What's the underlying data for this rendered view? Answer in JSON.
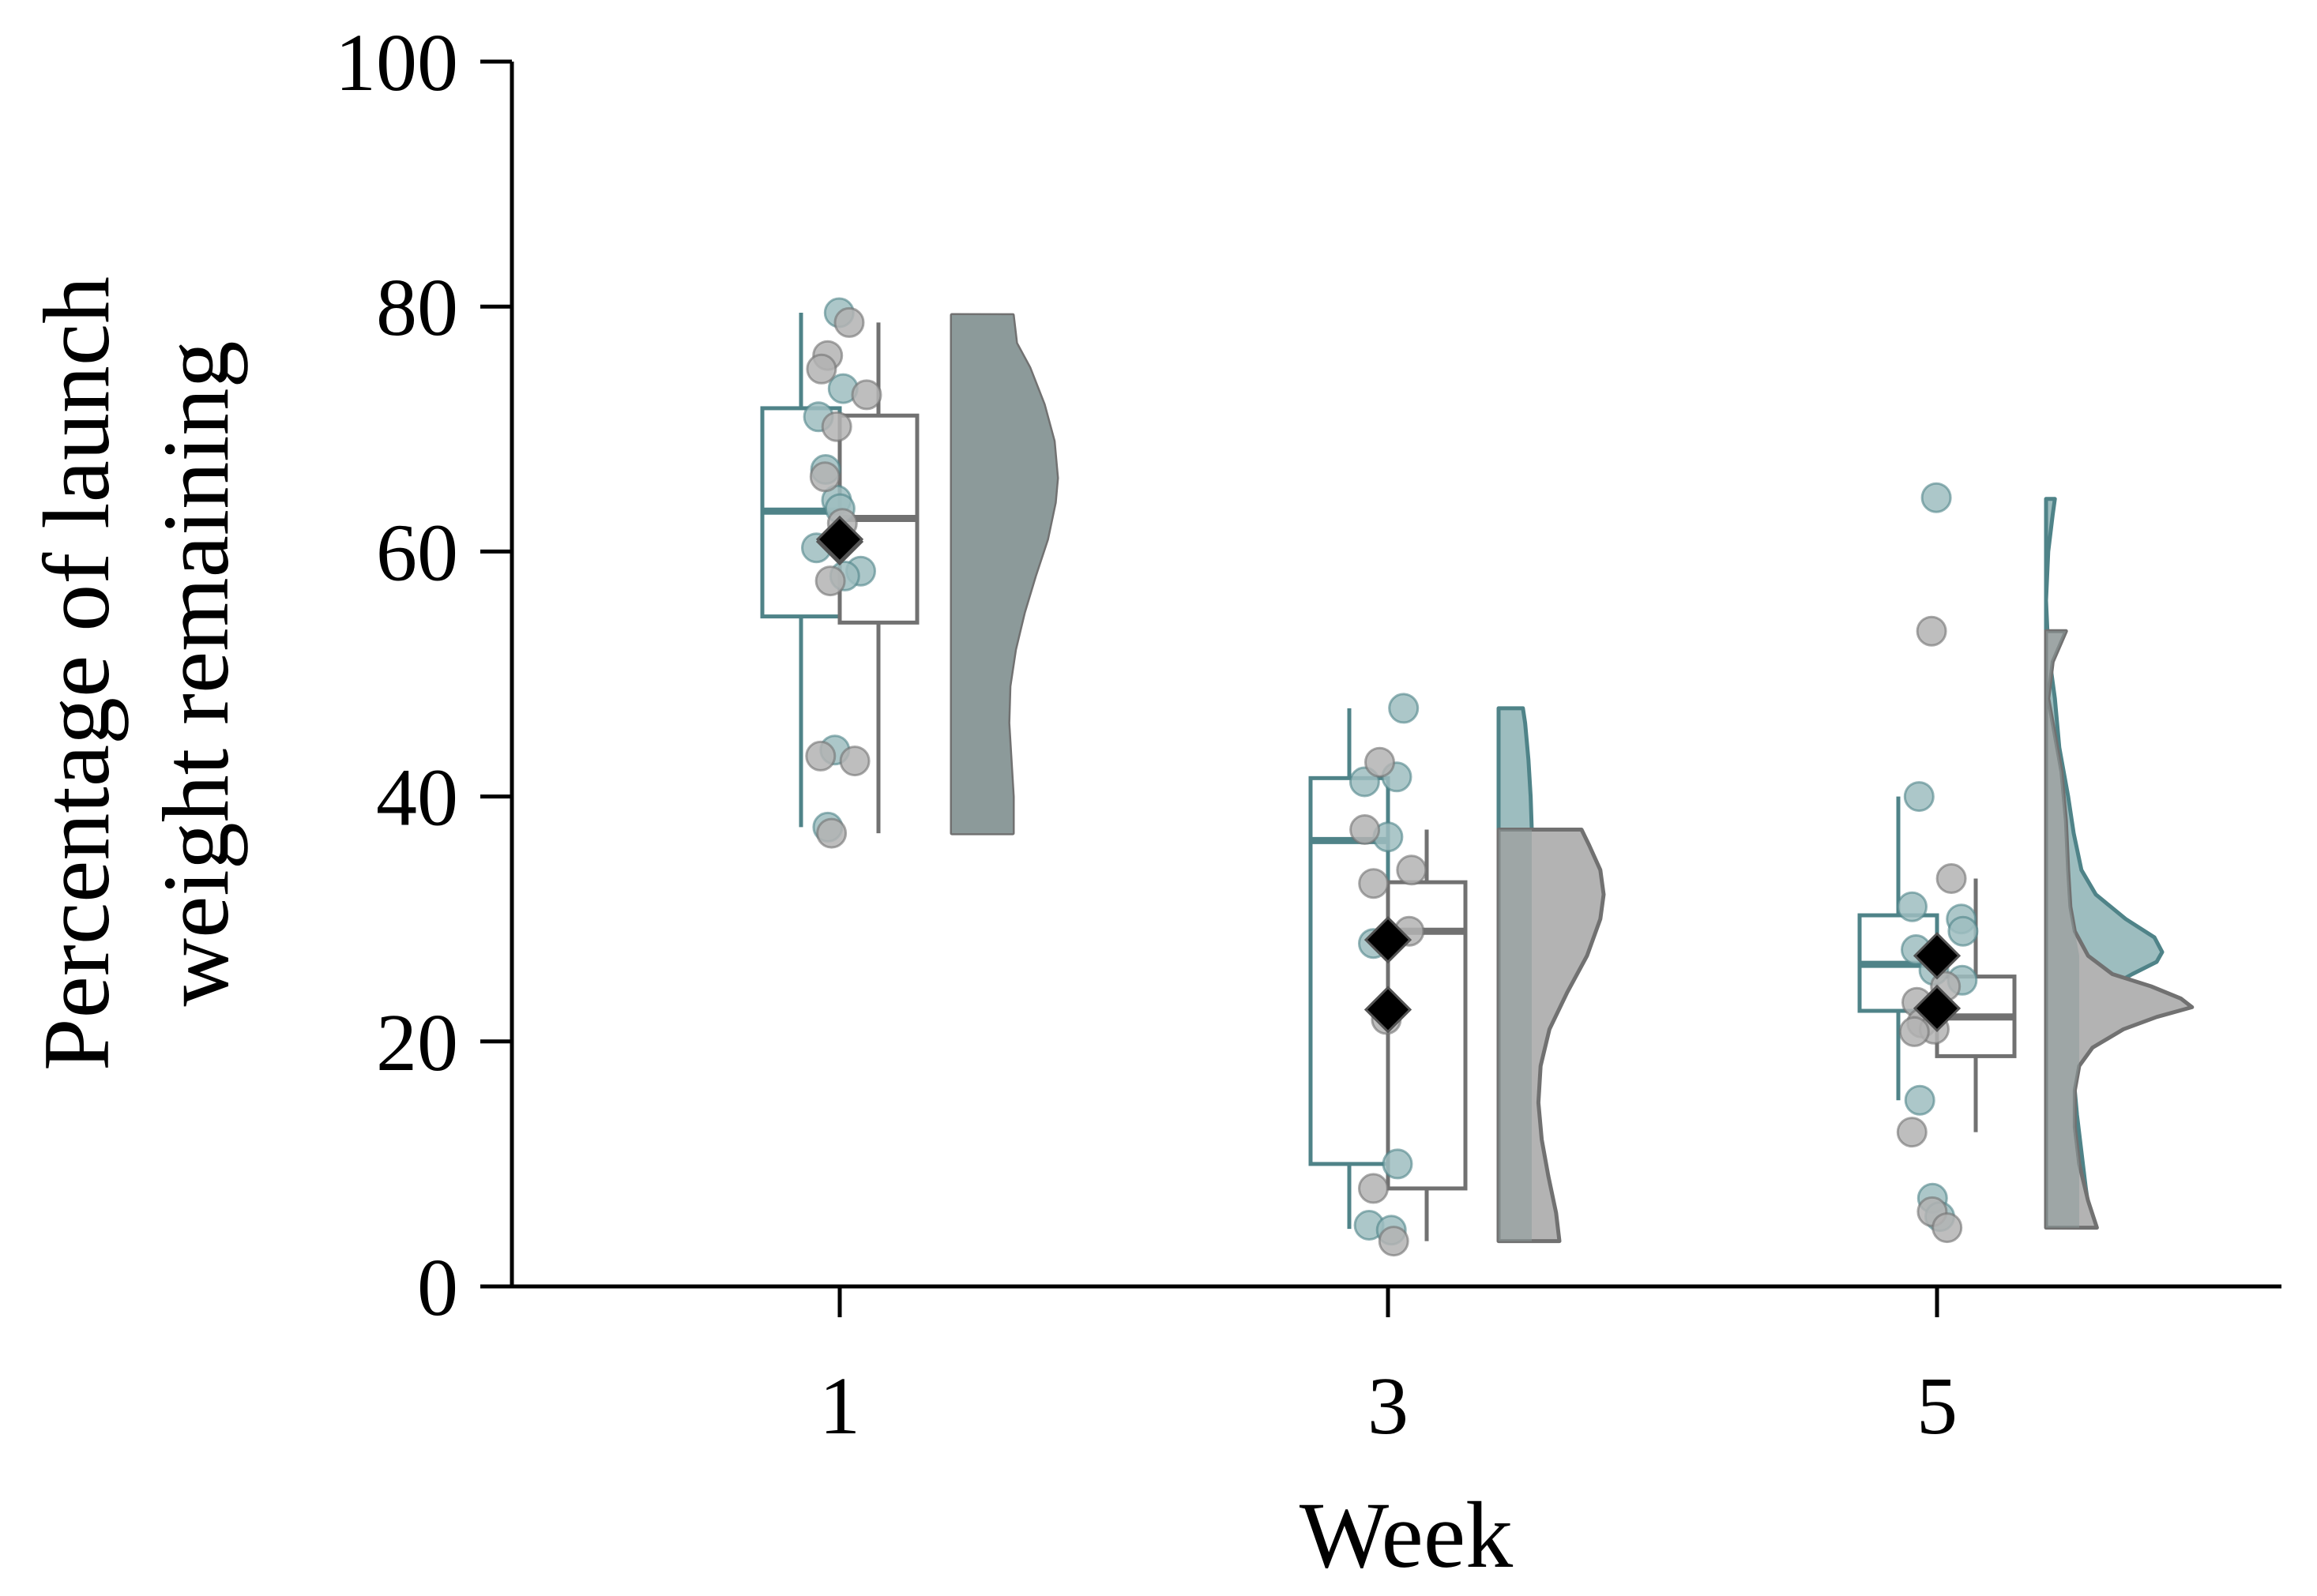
{
  "chart_data": {
    "type": "raincloud",
    "xlabel": "Week",
    "ylabel": [
      "Percentage of launch",
      "weight remaining"
    ],
    "ylim": [
      0,
      100
    ],
    "yticks": [
      "0",
      "20",
      "40",
      "60",
      "80",
      "100"
    ],
    "categories": [
      "1",
      "3",
      "5"
    ],
    "colors": {
      "teal": "#4f8388",
      "teal_fill": "#9dbdbf",
      "gray": "#717171",
      "gray_fill": "#b3b3b3",
      "overlap_fill": "#8c9a9a",
      "mean_marker": "#000000"
    },
    "series": [
      {
        "name": "teal-group",
        "color_key": "teal",
        "boxes": [
          {
            "week": "1",
            "min": 37.5,
            "q1": 54.7,
            "median": 63.3,
            "q3": 71.7,
            "max": 79.5
          },
          {
            "week": "3",
            "min": 4.7,
            "q1": 10.0,
            "median": 36.4,
            "q3": 41.5,
            "max": 47.2
          },
          {
            "week": "5",
            "min": 15.2,
            "q1": 22.5,
            "median": 26.3,
            "q3": 30.3,
            "max": 40.0
          }
        ],
        "points": [
          {
            "week": "1",
            "values": [
              79.5,
              73.3,
              71.0,
              66.7,
              64.2,
              63.5,
              60.3,
              58.4,
              58.0,
              43.8,
              37.5
            ]
          },
          {
            "week": "3",
            "values": [
              47.2,
              41.6,
              41.2,
              36.7,
              28.0,
              10.0,
              5.0,
              4.6
            ]
          },
          {
            "week": "5",
            "values": [
              64.4,
              40.0,
              31.0,
              30.0,
              29.0,
              27.5,
              25.8,
              25.0,
              15.2,
              7.2,
              5.7
            ]
          }
        ],
        "means": [
          {
            "week": "1",
            "value": 60.8
          },
          {
            "week": "3",
            "value": 28.3
          },
          {
            "week": "5",
            "value": 27.0
          }
        ]
      },
      {
        "name": "gray-group",
        "color_key": "gray",
        "boxes": [
          {
            "week": "1",
            "min": 37.0,
            "q1": 54.2,
            "median": 62.7,
            "q3": 71.1,
            "max": 78.7
          },
          {
            "week": "3",
            "min": 3.7,
            "q1": 8.0,
            "median": 29.0,
            "q3": 33.0,
            "max": 37.3
          },
          {
            "week": "5",
            "min": 12.6,
            "q1": 18.8,
            "median": 22.0,
            "q3": 25.3,
            "max": 33.3
          }
        ],
        "points": [
          {
            "week": "1",
            "values": [
              78.7,
              76.0,
              74.9,
              72.8,
              70.2,
              66.1,
              62.3,
              57.6,
              43.3,
              42.9,
              37.0
            ]
          },
          {
            "week": "3",
            "values": [
              42.8,
              37.3,
              34.0,
              32.9,
              29.0,
              21.8,
              8.0,
              3.7
            ]
          },
          {
            "week": "5",
            "values": [
              53.5,
              33.3,
              24.5,
              23.2,
              21.5,
              21.0,
              20.8,
              12.6,
              6.1,
              4.8
            ]
          }
        ],
        "means": [
          {
            "week": "1",
            "value": 61.0
          },
          {
            "week": "3",
            "value": 22.6
          },
          {
            "week": "5",
            "value": 22.7
          }
        ]
      }
    ],
    "densities": [
      {
        "week": "1",
        "series": "gray-group",
        "color_key": "gray",
        "ymin": 37.0,
        "ymax": 79.3,
        "profile": [
          [
            37.0,
            0.55
          ],
          [
            40,
            0.55
          ],
          [
            43,
            0.53
          ],
          [
            46,
            0.51
          ],
          [
            49,
            0.52
          ],
          [
            52,
            0.57
          ],
          [
            55,
            0.65
          ],
          [
            58,
            0.75
          ],
          [
            61,
            0.86
          ],
          [
            64,
            0.93
          ],
          [
            66,
            0.95
          ],
          [
            69,
            0.92
          ],
          [
            72,
            0.83
          ],
          [
            75,
            0.7
          ],
          [
            77,
            0.58
          ],
          [
            79.3,
            0.55
          ]
        ]
      },
      {
        "week": "3",
        "series": "teal-group",
        "color_key": "teal",
        "ymin": 37.3,
        "ymax": 47.2,
        "profile": [
          [
            37.3,
            0.3
          ],
          [
            40,
            0.29
          ],
          [
            43,
            0.27
          ],
          [
            46,
            0.24
          ],
          [
            47.2,
            0.22
          ]
        ]
      },
      {
        "week": "3",
        "series": "gray-group",
        "color_key": "gray",
        "ymin": 3.7,
        "ymax": 37.3,
        "profile": [
          [
            3.7,
            0.55
          ],
          [
            6,
            0.52
          ],
          [
            9,
            0.45
          ],
          [
            12,
            0.39
          ],
          [
            15,
            0.36
          ],
          [
            18,
            0.38
          ],
          [
            21,
            0.46
          ],
          [
            24,
            0.62
          ],
          [
            27,
            0.8
          ],
          [
            30,
            0.92
          ],
          [
            32,
            0.95
          ],
          [
            34,
            0.92
          ],
          [
            36,
            0.82
          ],
          [
            37.3,
            0.75
          ]
        ]
      },
      {
        "week": "5",
        "series": "teal-group",
        "color_key": "teal",
        "ymin": 5.5,
        "ymax": 64.3,
        "profile": [
          [
            5.5,
            0.4
          ],
          [
            8,
            0.36
          ],
          [
            11,
            0.32
          ],
          [
            14,
            0.28
          ],
          [
            17,
            0.25
          ],
          [
            20,
            0.26
          ],
          [
            22,
            0.3
          ],
          [
            24,
            0.48
          ],
          [
            25.5,
            0.78
          ],
          [
            26.5,
            1.0
          ],
          [
            27.3,
            1.05
          ],
          [
            28.5,
            0.98
          ],
          [
            30,
            0.72
          ],
          [
            32,
            0.45
          ],
          [
            34,
            0.32
          ],
          [
            37,
            0.25
          ],
          [
            40,
            0.2
          ],
          [
            44,
            0.12
          ],
          [
            48,
            0.08
          ],
          [
            52,
            0.02
          ],
          [
            56,
            0.0
          ],
          [
            60,
            0.02
          ],
          [
            63,
            0.06
          ],
          [
            64.3,
            0.08
          ]
        ]
      },
      {
        "week": "5",
        "series": "gray-group",
        "color_key": "gray",
        "ymin": 4.8,
        "ymax": 53.5,
        "profile": [
          [
            4.8,
            0.46
          ],
          [
            7,
            0.38
          ],
          [
            10,
            0.3
          ],
          [
            13,
            0.26
          ],
          [
            16,
            0.26
          ],
          [
            18,
            0.3
          ],
          [
            19.5,
            0.42
          ],
          [
            21,
            0.7
          ],
          [
            22,
            1.0
          ],
          [
            22.8,
            1.32
          ],
          [
            23.5,
            1.22
          ],
          [
            24.5,
            0.95
          ],
          [
            25.5,
            0.6
          ],
          [
            27,
            0.38
          ],
          [
            29,
            0.26
          ],
          [
            31,
            0.22
          ],
          [
            34,
            0.2
          ],
          [
            38,
            0.18
          ],
          [
            42,
            0.14
          ],
          [
            46,
            0.06
          ],
          [
            48,
            0.02
          ],
          [
            51,
            0.06
          ],
          [
            53.5,
            0.18
          ]
        ]
      }
    ]
  }
}
